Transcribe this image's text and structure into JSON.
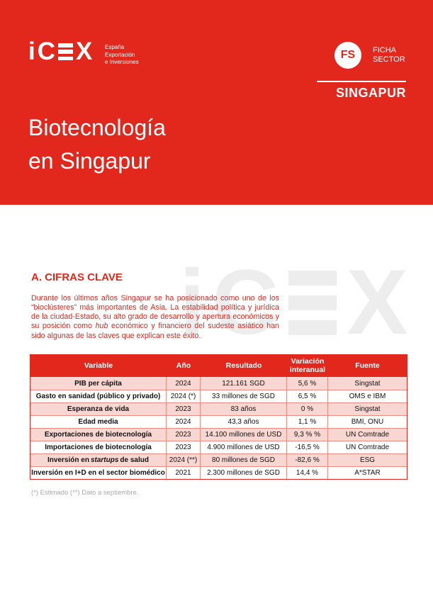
{
  "brand": {
    "logo_letters": [
      "i",
      "C",
      "E",
      "X"
    ],
    "tagline_lines": [
      "España",
      "Exportación",
      "e Inversiones"
    ],
    "badge_initials": "FS",
    "badge_label_lines": [
      "FICHA",
      "SECTOR"
    ],
    "country": "SINGAPUR"
  },
  "title_lines": [
    "Biotecnología",
    "en Singapur"
  ],
  "watermark_letters": [
    "i",
    "C",
    "E",
    "X"
  ],
  "section": {
    "heading": "A. CIFRAS CLAVE",
    "intro_part1": "Durante los últimos años Singapur se ha posicionado como uno de los “bioclústeres” más importantes de Asia. La estabilidad política y jurídica de la ciudad-Estado, su alto grado de desarrollo y apertura económicos y su posición como ",
    "intro_hub": "hub",
    "intro_part2": " económico y financiero del sudeste asiático han sido algunas de las claves que explican este éxito."
  },
  "table": {
    "headers": [
      "Variable",
      "Año",
      "Resultado",
      "Variación interanual",
      "Fuente"
    ],
    "rows": [
      {
        "variable": "PIB per cápita",
        "ano": "2024",
        "resultado": "121.161 SGD",
        "variacion": "5,6 %",
        "fuente": "Singstat"
      },
      {
        "variable": "Gasto en sanidad (público y privado)",
        "ano": "2024 (*)",
        "resultado": "33 millones de SGD",
        "variacion": "6,5 %",
        "fuente": "OMS e IBM"
      },
      {
        "variable": "Esperanza de vida",
        "ano": "2023",
        "resultado": "83 años",
        "variacion": "0 %",
        "fuente": "Singstat"
      },
      {
        "variable": "Edad media",
        "ano": "2024",
        "resultado": "43,3 años",
        "variacion": "1,1 %",
        "fuente": "BMI, ONU"
      },
      {
        "variable": "Exportaciones de biotecnología",
        "ano": "2023",
        "resultado": "14.100 millones de USD",
        "variacion": "9,3 % %",
        "fuente": "UN Comtrade"
      },
      {
        "variable": "Importaciones de biotecnología",
        "ano": "2023",
        "resultado": "4.900 millones de USD",
        "variacion": "-16,5 %",
        "fuente": "UN Comtrade"
      },
      {
        "variable": "Inversión en *startups* de salud",
        "ano": "2024 (**)",
        "resultado": "80 millones de SGD",
        "variacion": "-82,6 %",
        "fuente": "ESG"
      },
      {
        "variable": "Inversión en I+D en el sector biomédico",
        "ano": "2021",
        "resultado": "2.300 millones de SGD",
        "variacion": "14,4 %",
        "fuente": "A*STAR"
      }
    ],
    "footnote": "(*) Estimado (**) Dato a septiembre."
  },
  "colors": {
    "brand_red": "#E2271C",
    "row_pink": "#F8D7D2",
    "table_border_salmon": "#E98D82",
    "watermark_gray": "#EDEDEE",
    "footnote_gray": "#A8AAAD"
  }
}
